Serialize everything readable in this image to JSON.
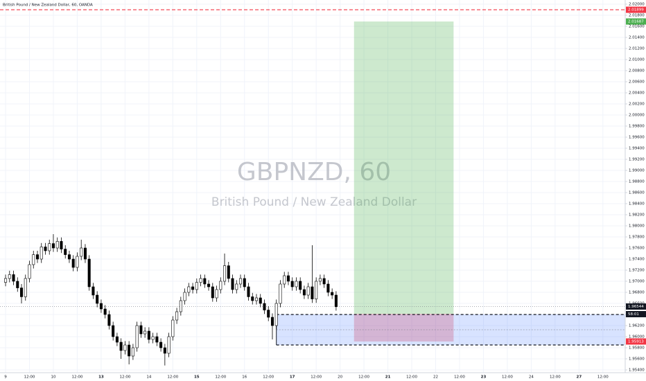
{
  "chart_data": {
    "type": "candlestick",
    "title": "British Pound / New Zealand Dollar, 60, OANDA",
    "watermark": "GBPNZD, 60",
    "watermark_subtitle": "British Pound / New Zealand Dollar",
    "x": [
      0,
      2,
      4,
      6,
      8,
      10,
      12,
      14,
      16,
      18,
      20,
      22,
      24,
      26,
      28,
      30,
      32,
      34,
      36,
      38,
      40,
      42,
      44,
      46,
      48,
      50,
      52,
      54,
      56,
      58,
      60,
      62,
      64,
      66,
      68,
      70,
      72,
      74,
      76,
      78,
      80,
      82,
      84,
      86,
      88,
      90,
      92,
      94,
      96,
      98,
      100,
      102,
      104,
      106,
      108,
      110,
      112,
      114,
      116,
      118,
      120,
      122,
      124,
      126,
      128,
      130,
      132,
      134,
      136,
      138,
      140,
      142,
      144,
      146,
      148,
      150,
      152,
      154,
      156,
      158,
      160,
      162,
      164,
      166
    ],
    "open": [
      1.9698,
      1.9705,
      1.9712,
      1.97,
      1.9688,
      1.9672,
      1.9705,
      1.973,
      1.9748,
      1.974,
      1.9762,
      1.9755,
      1.9768,
      1.976,
      1.9772,
      1.9758,
      1.9748,
      1.974,
      1.9725,
      1.9745,
      1.976,
      1.974,
      1.969,
      1.9675,
      1.966,
      1.965,
      1.964,
      1.962,
      1.96,
      1.959,
      1.9575,
      1.9585,
      1.9565,
      1.958,
      1.962,
      1.9605,
      1.961,
      1.9595,
      1.96,
      1.959,
      1.958,
      1.957,
      1.96,
      1.963,
      1.9645,
      1.9665,
      1.968,
      1.969,
      1.9685,
      1.9698,
      1.9705,
      1.9695,
      1.969,
      1.967,
      1.9685,
      1.97,
      1.9728,
      1.9705,
      1.9685,
      1.9695,
      1.9705,
      1.969,
      1.9672,
      1.9665,
      1.967,
      1.966,
      1.9648,
      1.9635,
      1.962,
      1.966,
      1.9695,
      1.971,
      1.97,
      1.969,
      1.97,
      1.9685,
      1.9675,
      1.969,
      1.9668,
      1.97,
      1.9705,
      1.9695,
      1.968,
      1.9675
    ],
    "high": [
      1.9712,
      1.9719,
      1.9719,
      1.9707,
      1.9695,
      1.9712,
      1.9737,
      1.9755,
      1.9755,
      1.9769,
      1.9769,
      1.9775,
      1.9785,
      1.9779,
      1.9779,
      1.9765,
      1.9755,
      1.9747,
      1.9752,
      1.9775,
      1.9767,
      1.9747,
      1.9697,
      1.9682,
      1.9667,
      1.9657,
      1.9647,
      1.9627,
      1.9607,
      1.9597,
      1.9592,
      1.9592,
      1.9587,
      1.9627,
      1.9627,
      1.9617,
      1.9617,
      1.9607,
      1.9607,
      1.9597,
      1.9587,
      1.9607,
      1.9637,
      1.9652,
      1.9672,
      1.9687,
      1.9697,
      1.9697,
      1.9705,
      1.9712,
      1.9712,
      1.9702,
      1.9697,
      1.9692,
      1.9707,
      1.975,
      1.9735,
      1.9712,
      1.9702,
      1.9712,
      1.9712,
      1.9697,
      1.9679,
      1.9677,
      1.9677,
      1.9667,
      1.9655,
      1.9642,
      1.9667,
      1.9702,
      1.9717,
      1.9717,
      1.9707,
      1.9707,
      1.9707,
      1.9692,
      1.9697,
      1.9765,
      1.9707,
      1.9712,
      1.9712,
      1.9702,
      1.9687,
      1.9682
    ],
    "low": [
      1.9691,
      1.9698,
      1.9693,
      1.9681,
      1.966,
      1.9665,
      1.9698,
      1.9723,
      1.9733,
      1.9733,
      1.9748,
      1.9748,
      1.9753,
      1.9753,
      1.9751,
      1.9741,
      1.9733,
      1.9718,
      1.9718,
      1.9738,
      1.9733,
      1.9683,
      1.9668,
      1.9653,
      1.9643,
      1.9633,
      1.9613,
      1.9593,
      1.9583,
      1.956,
      1.9568,
      1.955,
      1.9558,
      1.9573,
      1.9598,
      1.9598,
      1.9588,
      1.9588,
      1.9583,
      1.9573,
      1.9548,
      1.9563,
      1.9593,
      1.9623,
      1.9638,
      1.9658,
      1.9673,
      1.9678,
      1.9678,
      1.9691,
      1.9688,
      1.9683,
      1.9663,
      1.9663,
      1.9678,
      1.9693,
      1.9698,
      1.9678,
      1.9678,
      1.9688,
      1.9683,
      1.9665,
      1.9658,
      1.9658,
      1.9653,
      1.9641,
      1.9628,
      1.9595,
      1.9613,
      1.9653,
      1.9688,
      1.9693,
      1.9683,
      1.9683,
      1.9678,
      1.9668,
      1.9668,
      1.9661,
      1.9661,
      1.9693,
      1.9688,
      1.9673,
      1.9668,
      1.9647
    ],
    "close": [
      1.9705,
      1.9712,
      1.97,
      1.9688,
      1.9672,
      1.9705,
      1.973,
      1.9748,
      1.974,
      1.9762,
      1.9755,
      1.9768,
      1.976,
      1.9772,
      1.9758,
      1.9748,
      1.974,
      1.9725,
      1.9745,
      1.976,
      1.974,
      1.969,
      1.9675,
      1.966,
      1.965,
      1.964,
      1.962,
      1.96,
      1.959,
      1.9575,
      1.9585,
      1.9565,
      1.958,
      1.962,
      1.9605,
      1.961,
      1.9595,
      1.96,
      1.959,
      1.958,
      1.957,
      1.96,
      1.963,
      1.9645,
      1.9665,
      1.968,
      1.969,
      1.9685,
      1.9698,
      1.9705,
      1.9695,
      1.969,
      1.967,
      1.9685,
      1.97,
      1.9728,
      1.9705,
      1.9685,
      1.9695,
      1.9705,
      1.969,
      1.9672,
      1.9665,
      1.967,
      1.966,
      1.9648,
      1.9635,
      1.962,
      1.966,
      1.9695,
      1.971,
      1.97,
      1.969,
      1.97,
      1.9685,
      1.9675,
      1.969,
      1.9668,
      1.97,
      1.9705,
      1.9695,
      1.968,
      1.9675,
      1.9654
    ],
    "up_color": "#ffffff",
    "down_color": "#000000",
    "wick_color": "#000000",
    "xlim": [
      -2.8,
      311.2
    ],
    "ylim": [
      1.95325,
      2.02075
    ],
    "xticks": [
      {
        "value": 0,
        "label": "9"
      },
      {
        "value": 12,
        "label": "12:00"
      },
      {
        "value": 24,
        "label": "10"
      },
      {
        "value": 36,
        "label": "12:00"
      },
      {
        "value": 48,
        "label": "13"
      },
      {
        "value": 60,
        "label": "12:00"
      },
      {
        "value": 72,
        "label": "14"
      },
      {
        "value": 84,
        "label": "12:00"
      },
      {
        "value": 96,
        "label": "15"
      },
      {
        "value": 108,
        "label": "12:00"
      },
      {
        "value": 120,
        "label": "16"
      },
      {
        "value": 132,
        "label": "12:00"
      },
      {
        "value": 144,
        "label": "17"
      },
      {
        "value": 156,
        "label": "12:00"
      },
      {
        "value": 168,
        "label": "20"
      },
      {
        "value": 180,
        "label": "12:00"
      },
      {
        "value": 192,
        "label": "21"
      },
      {
        "value": 204,
        "label": "12:00"
      },
      {
        "value": 216,
        "label": "22"
      },
      {
        "value": 228,
        "label": "12:00"
      },
      {
        "value": 240,
        "label": "23"
      },
      {
        "value": 252,
        "label": "12:00"
      },
      {
        "value": 264,
        "label": "24"
      },
      {
        "value": 276,
        "label": "12:00"
      },
      {
        "value": 288,
        "label": "27"
      },
      {
        "value": 300,
        "label": "12:00"
      }
    ],
    "yticks": [
      {
        "value": 1.954,
        "label": "1.95400"
      },
      {
        "value": 1.956,
        "label": "1.95600"
      },
      {
        "value": 1.958,
        "label": "1.95800"
      },
      {
        "value": 1.96,
        "label": "1.96000"
      },
      {
        "value": 1.962,
        "label": "1.96200"
      },
      {
        "value": 1.964,
        "label": "1.96400"
      },
      {
        "value": 1.966,
        "label": "1.96600"
      },
      {
        "value": 1.968,
        "label": "1.96800"
      },
      {
        "value": 1.97,
        "label": "1.97000"
      },
      {
        "value": 1.972,
        "label": "1.97200"
      },
      {
        "value": 1.974,
        "label": "1.97400"
      },
      {
        "value": 1.976,
        "label": "1.97600"
      },
      {
        "value": 1.978,
        "label": "1.97800"
      },
      {
        "value": 1.98,
        "label": "1.98000"
      },
      {
        "value": 1.982,
        "label": "1.98200"
      },
      {
        "value": 1.984,
        "label": "1.98400"
      },
      {
        "value": 1.986,
        "label": "1.98600"
      },
      {
        "value": 1.988,
        "label": "1.98800"
      },
      {
        "value": 1.99,
        "label": "1.99000"
      },
      {
        "value": 1.992,
        "label": "1.99200"
      },
      {
        "value": 1.994,
        "label": "1.99400"
      },
      {
        "value": 1.996,
        "label": "1.99600"
      },
      {
        "value": 1.998,
        "label": "1.99800"
      },
      {
        "value": 2.0,
        "label": "2.00000"
      },
      {
        "value": 2.002,
        "label": "2.00200"
      },
      {
        "value": 2.004,
        "label": "2.00400"
      },
      {
        "value": 2.006,
        "label": "2.00600"
      },
      {
        "value": 2.008,
        "label": "2.00800"
      },
      {
        "value": 2.01,
        "label": "2.01000"
      },
      {
        "value": 2.012,
        "label": "2.01200"
      },
      {
        "value": 2.014,
        "label": "2.01400"
      },
      {
        "value": 2.016,
        "label": "2.01600"
      },
      {
        "value": 2.018,
        "label": "2.01800"
      },
      {
        "value": 2.02,
        "label": "2.02000"
      }
    ],
    "grid": true,
    "current_price": 1.96544,
    "countdown": "58:01",
    "alert_line": {
      "value": 2.01899,
      "color": "#f23645"
    },
    "position": {
      "x_start": 175,
      "x_end": 225,
      "entry": 1.96412,
      "target": 2.01687,
      "stop": 1.95913,
      "target_color": "#4caf50",
      "stop_color": "#f23645"
    },
    "range_box": {
      "x_start": 136,
      "top": 1.964,
      "bottom": 1.9585,
      "mid": 1.96125,
      "color": "#2962ff"
    }
  }
}
